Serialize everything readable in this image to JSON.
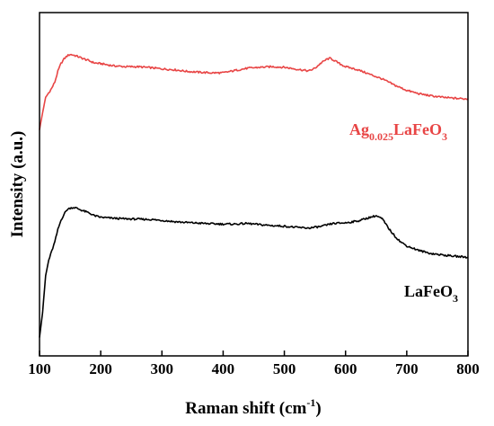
{
  "chart_data": {
    "type": "line",
    "xlabel": "Raman shift (cm",
    "xlabel_sup": "-1",
    "xlabel_end": ")",
    "ylabel": "Intensity (a.u.)",
    "xlim": [
      100,
      800
    ],
    "ylim": [
      0,
      1
    ],
    "x_ticks": [
      "100",
      "200",
      "300",
      "400",
      "500",
      "600",
      "700",
      "800"
    ],
    "y_ticks_labeled": false,
    "grid": false,
    "series": [
      {
        "name": "Ag0.025LaFeO3",
        "label_main": "Ag",
        "label_sub": "0.025",
        "label_mid": "LaFeO",
        "label_sub2": "3",
        "color": "#e84545",
        "x": [
          100,
          105,
          110,
          115,
          120,
          125,
          130,
          135,
          140,
          145,
          150,
          155,
          160,
          170,
          180,
          190,
          200,
          220,
          240,
          260,
          280,
          300,
          320,
          340,
          360,
          380,
          400,
          420,
          440,
          460,
          480,
          500,
          520,
          540,
          550,
          560,
          570,
          575,
          580,
          590,
          600,
          620,
          640,
          660,
          680,
          700,
          720,
          740,
          760,
          780,
          800
        ],
        "y": [
          0.695,
          0.75,
          0.8,
          0.815,
          0.83,
          0.85,
          0.885,
          0.91,
          0.925,
          0.935,
          0.94,
          0.938,
          0.935,
          0.927,
          0.92,
          0.912,
          0.91,
          0.903,
          0.9,
          0.9,
          0.897,
          0.893,
          0.89,
          0.885,
          0.882,
          0.88,
          0.88,
          0.888,
          0.895,
          0.898,
          0.9,
          0.898,
          0.892,
          0.886,
          0.895,
          0.912,
          0.925,
          0.927,
          0.922,
          0.91,
          0.9,
          0.89,
          0.875,
          0.86,
          0.84,
          0.823,
          0.812,
          0.805,
          0.8,
          0.797,
          0.795
        ]
      },
      {
        "name": "LaFeO3",
        "label_main": "LaFeO",
        "label_sub": "3",
        "color": "#000000",
        "x": [
          100,
          105,
          110,
          115,
          120,
          125,
          130,
          135,
          140,
          145,
          150,
          155,
          160,
          170,
          180,
          190,
          200,
          220,
          240,
          260,
          280,
          300,
          320,
          340,
          360,
          380,
          400,
          420,
          440,
          460,
          480,
          500,
          520,
          540,
          560,
          580,
          600,
          620,
          640,
          650,
          660,
          670,
          680,
          690,
          700,
          720,
          740,
          760,
          780,
          800
        ],
        "y": [
          0.02,
          0.1,
          0.22,
          0.27,
          0.3,
          0.33,
          0.37,
          0.4,
          0.42,
          0.435,
          0.44,
          0.442,
          0.44,
          0.432,
          0.425,
          0.415,
          0.41,
          0.407,
          0.405,
          0.404,
          0.403,
          0.4,
          0.396,
          0.393,
          0.391,
          0.389,
          0.388,
          0.388,
          0.39,
          0.386,
          0.383,
          0.381,
          0.377,
          0.375,
          0.38,
          0.39,
          0.392,
          0.398,
          0.41,
          0.415,
          0.405,
          0.375,
          0.35,
          0.33,
          0.317,
          0.302,
          0.292,
          0.287,
          0.283,
          0.28
        ]
      }
    ]
  }
}
